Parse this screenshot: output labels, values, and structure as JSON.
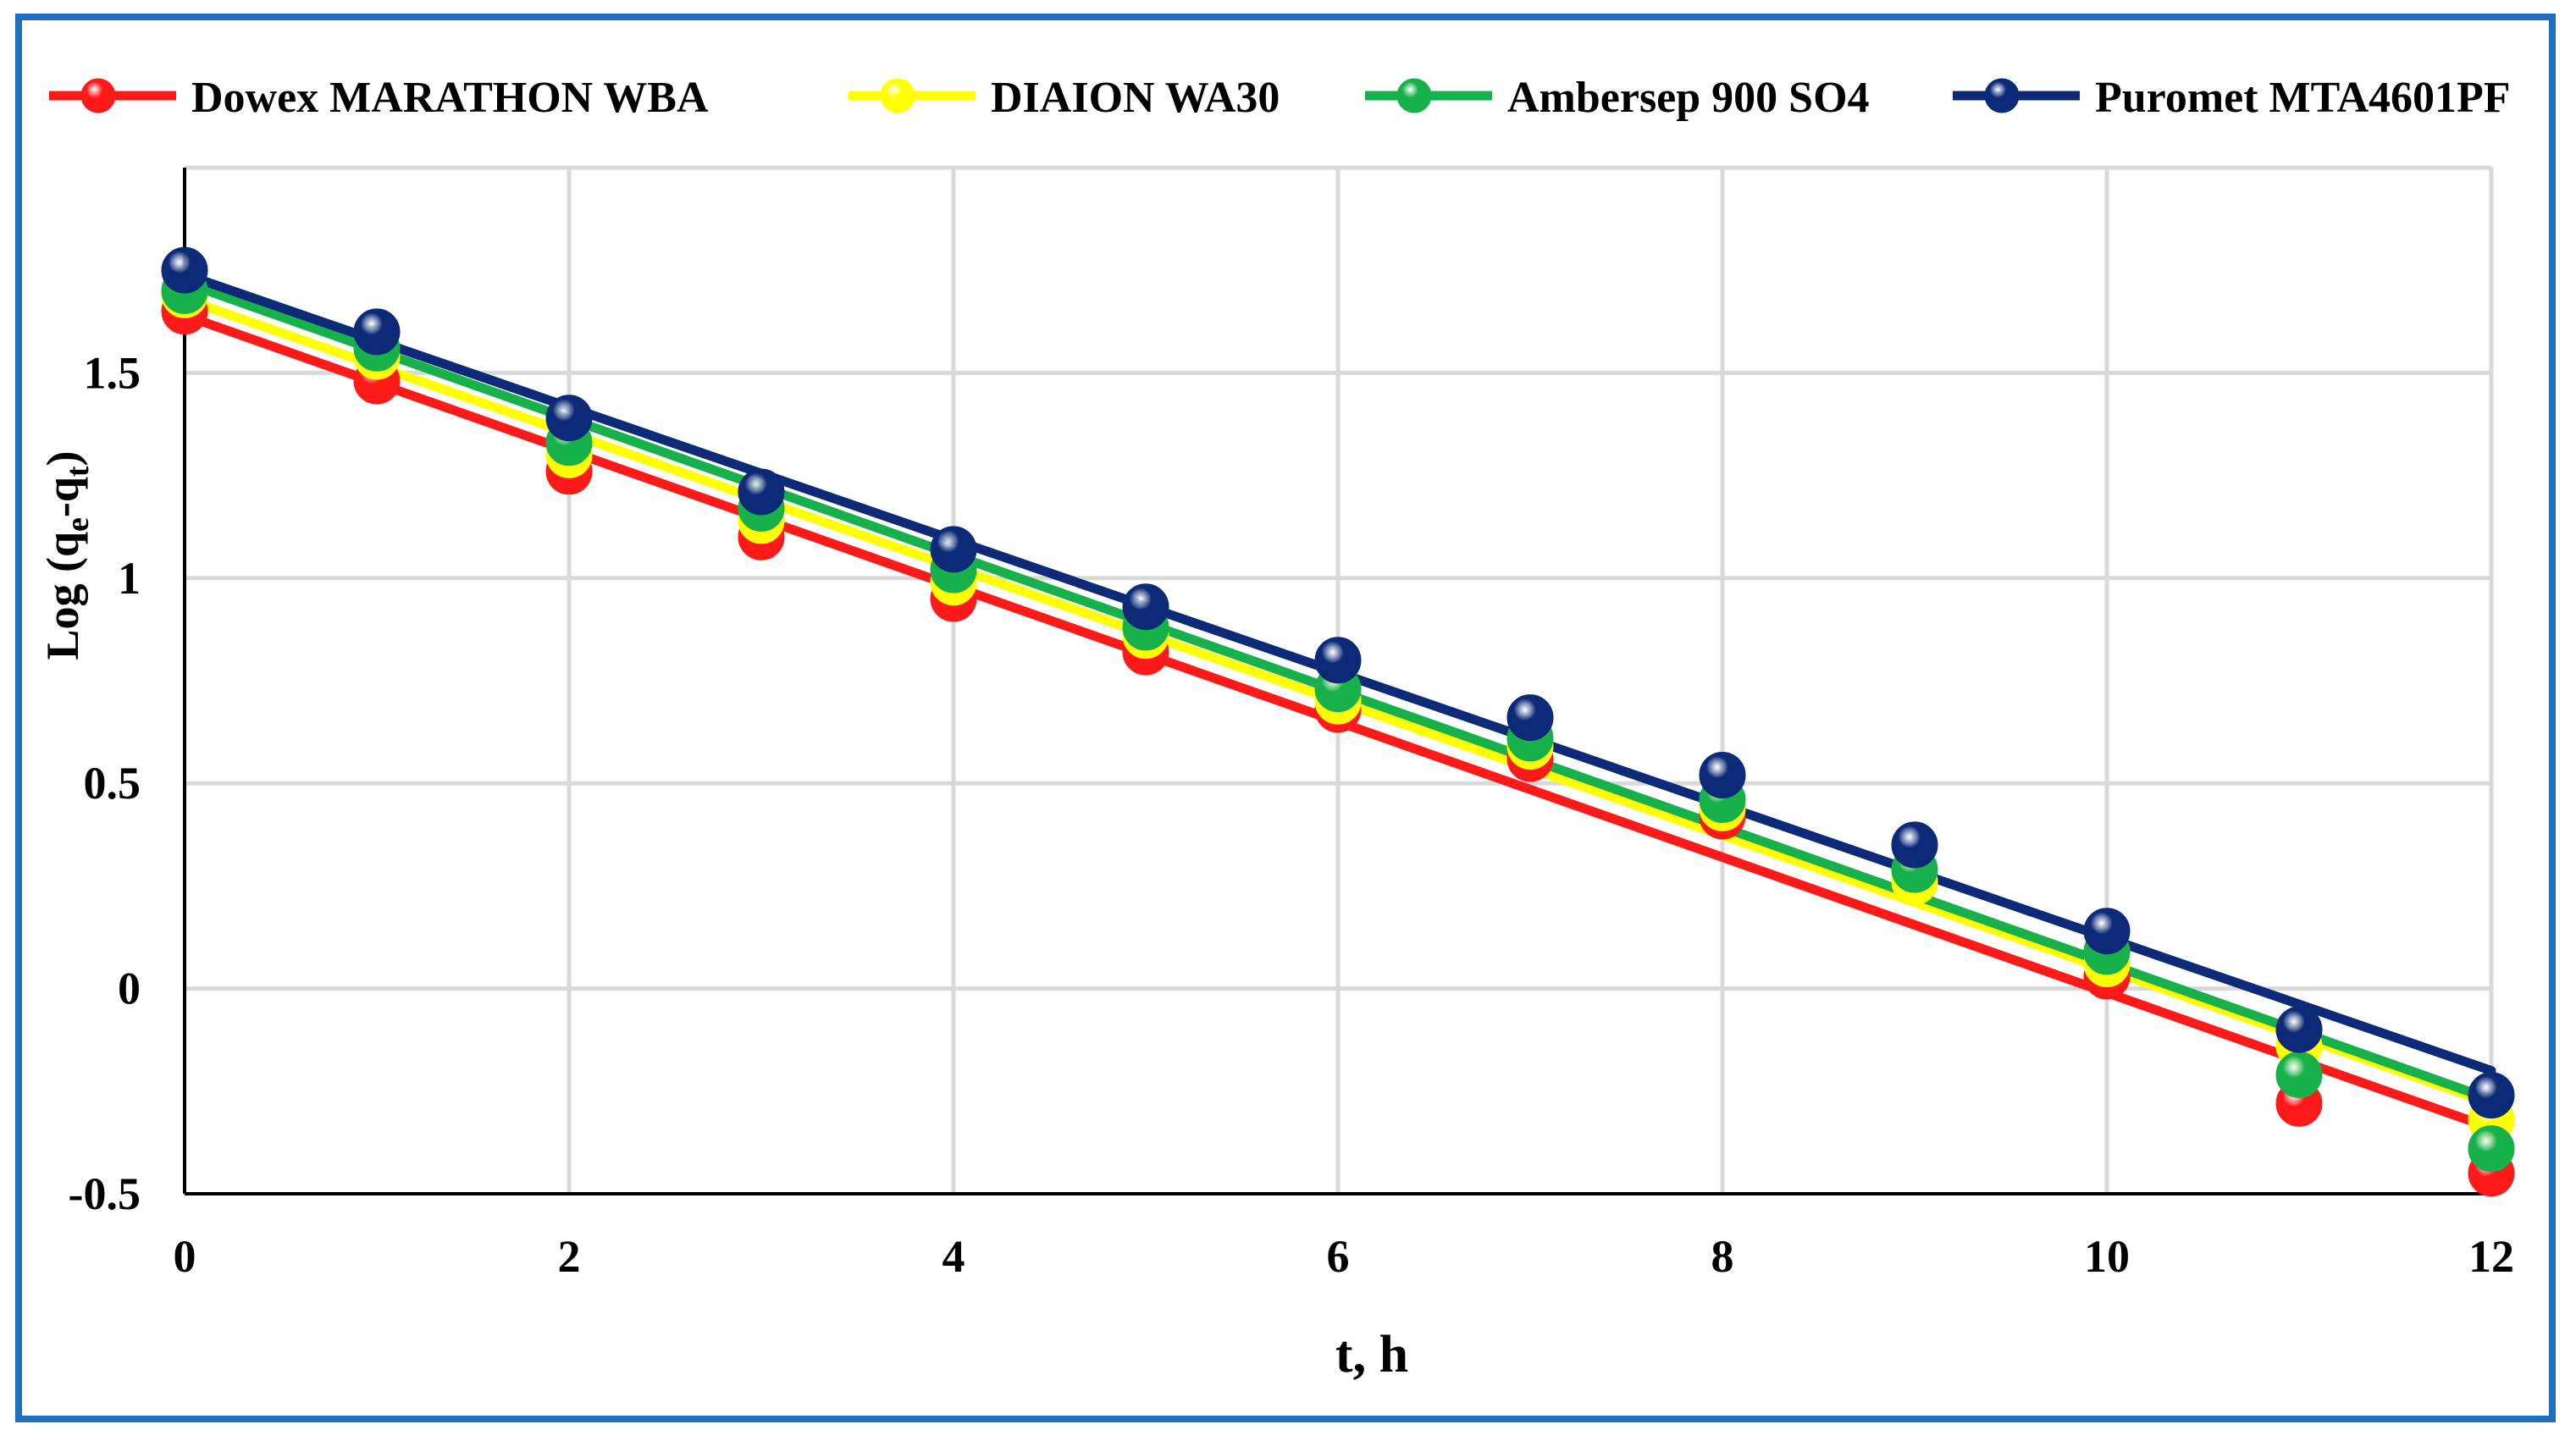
{
  "chart_data": {
    "type": "scatter",
    "title": "",
    "xlabel": "t, h",
    "ylabel": "Log (qe-qt)",
    "ylabel_parts": {
      "main": "Log (q",
      "sub1": "e",
      "mid": "-q",
      "sub2": "t",
      "end": ")"
    },
    "xlim": [
      0,
      12
    ],
    "ylim": [
      -0.5,
      2.0
    ],
    "x_ticks": [
      "0",
      "2",
      "4",
      "6",
      "8",
      "10",
      "12"
    ],
    "y_ticks": [
      "-0.5",
      "0",
      "0.5",
      "1",
      "1.5"
    ],
    "x_tick_values": [
      0,
      2,
      4,
      6,
      8,
      10,
      12
    ],
    "y_tick_values": [
      -0.5,
      0,
      0.5,
      1,
      1.5
    ],
    "grid": true,
    "legend_position": "top",
    "x": [
      0,
      1,
      2,
      3,
      4,
      5,
      6,
      7,
      8,
      9,
      10,
      11,
      12
    ],
    "series": [
      {
        "name": "Dowex MARATHON WBA",
        "color": "#ff1a1a",
        "values": [
          1.65,
          1.48,
          1.26,
          1.1,
          0.95,
          0.82,
          0.68,
          0.56,
          0.42,
          0.26,
          0.03,
          -0.28,
          -0.45
        ],
        "fit": [
          1.64,
          -0.34
        ]
      },
      {
        "name": "DIAION WA30",
        "color": "#ffff00",
        "values": [
          1.69,
          1.54,
          1.3,
          1.14,
          0.99,
          0.86,
          0.7,
          0.59,
          0.44,
          0.26,
          0.06,
          -0.14,
          -0.32
        ],
        "fit": [
          1.68,
          -0.28
        ]
      },
      {
        "name": "Ambersep 900 SO4",
        "color": "#16b14a",
        "values": [
          1.7,
          1.56,
          1.33,
          1.17,
          1.02,
          0.88,
          0.73,
          0.61,
          0.46,
          0.29,
          0.09,
          -0.21,
          -0.39
        ],
        "fit": [
          1.72,
          -0.27
        ]
      },
      {
        "name": "Puromet MTA4601PF",
        "color": "#0d2a78",
        "values": [
          1.75,
          1.6,
          1.39,
          1.21,
          1.07,
          0.93,
          0.8,
          0.66,
          0.52,
          0.35,
          0.14,
          -0.1,
          -0.26
        ],
        "fit": [
          1.74,
          -0.2
        ]
      }
    ]
  }
}
